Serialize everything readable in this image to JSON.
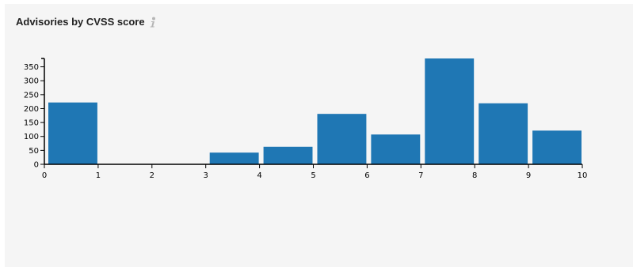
{
  "panel": {
    "title": "Advisories by CVSS score",
    "info_icon": "info-icon"
  },
  "colors": {
    "bar": "#1f77b4",
    "axis": "#000000",
    "panel_bg": "#f5f5f5"
  },
  "chart_data": {
    "type": "bar",
    "title": "Advisories by CVSS score",
    "xlabel": "",
    "ylabel": "",
    "grid": false,
    "bins": [
      {
        "x0": 0,
        "x1": 1,
        "value": 222
      },
      {
        "x0": 1,
        "x1": 2,
        "value": 0
      },
      {
        "x0": 2,
        "x1": 3,
        "value": 0
      },
      {
        "x0": 3,
        "x1": 4,
        "value": 42
      },
      {
        "x0": 4,
        "x1": 5,
        "value": 63
      },
      {
        "x0": 5,
        "x1": 6,
        "value": 181
      },
      {
        "x0": 6,
        "x1": 7,
        "value": 107
      },
      {
        "x0": 7,
        "x1": 8,
        "value": 380
      },
      {
        "x0": 8,
        "x1": 9,
        "value": 219
      },
      {
        "x0": 9,
        "x1": 10,
        "value": 121
      }
    ],
    "xlim": [
      0,
      10
    ],
    "ylim": [
      0,
      380
    ],
    "x_ticks": [
      "0",
      "1",
      "2",
      "3",
      "4",
      "5",
      "6",
      "7",
      "8",
      "9",
      "10"
    ],
    "y_ticks": [
      "0",
      "50",
      "100",
      "150",
      "200",
      "250",
      "300",
      "350"
    ]
  }
}
